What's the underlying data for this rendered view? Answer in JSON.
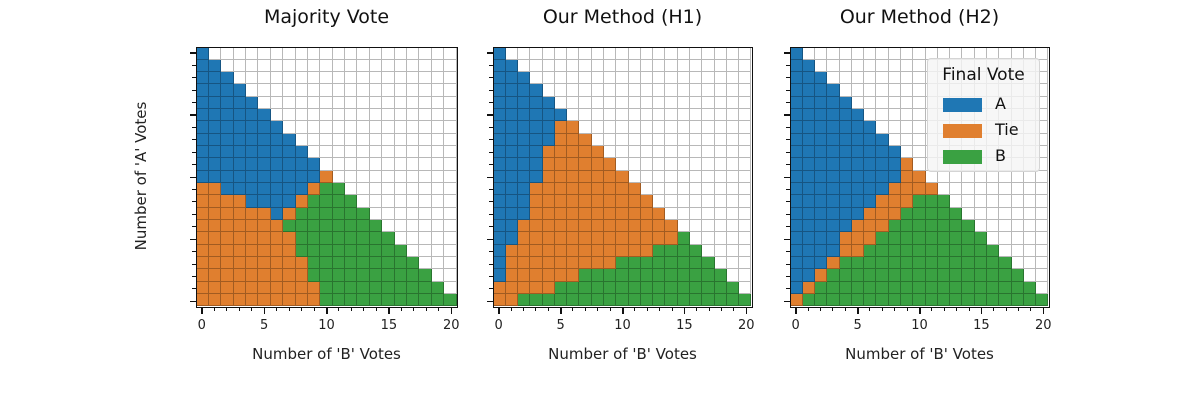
{
  "chart_data": {
    "type": "heatmap",
    "description": "Three triangular categorical grids: final vote outcome for each (B votes, A votes) pair with A+B <= 20",
    "legend": {
      "title": "Final Vote",
      "position": "upper right of third panel",
      "entries": [
        {
          "key": "A",
          "label": "A",
          "color": "#1f77b4"
        },
        {
          "key": "T",
          "label": "Tie",
          "color": "#e07f2f"
        },
        {
          "key": "B",
          "label": "B",
          "color": "#3aa142"
        }
      ]
    },
    "xlabel": "Number of 'B' Votes",
    "ylabel": "Number of 'A' Votes",
    "xlim": [
      0,
      20
    ],
    "ylim": [
      0,
      20
    ],
    "major_ticks": [
      0,
      5,
      10,
      15,
      20
    ],
    "minor_ticks_step": 1,
    "grid": true,
    "row_encoding": "rows listed from A=20 (top) down to A=0 (bottom); each string gives outcome for B=0..(20-A); A=A wins, T=Tie, B=B wins",
    "panels": [
      {
        "title": "Majority Vote",
        "rows": [
          "A",
          "AA",
          "AAA",
          "AAAA",
          "AAAAA",
          "AAAAAA",
          "AAAAAAA",
          "AAAAAAAA",
          "AAAAAAAAA",
          "AAAAAAAAAA",
          "AAAAAAAAAAT",
          "TTAAAAAAATBB",
          "TTTTAAAATBBBB",
          "TTTTTTATBBBBBB",
          "TTTTTTTBBBBBBBB",
          "TTTTTTTTBBBBBBBB",
          "TTTTTTTTBBBBBBBBB",
          "TTTTTTTTTBBBBBBBBB",
          "TTTTTTTTTBBBBBBBBBB",
          "TTTTTTTTTTBBBBBBBBBB",
          "TTTTTTTTTTBBBBBBBBBBB"
        ]
      },
      {
        "title": "Our Method (H1)",
        "rows": [
          "A",
          "AA",
          "AAA",
          "AAAA",
          "AAAAA",
          "AAAAAA",
          "AAAAATT",
          "AAAAATTT",
          "AAAATTTTT",
          "AAAATTTTTT",
          "AAAATTTTTTT",
          "AAATTTTTTTTT",
          "AAATTTTTTTTTT",
          "AAATTTTTTTTTTT",
          "AATTTTTTTTTTTTT",
          "AATTTTTTTTTTTTTB",
          "ATTTTTTTTTTTTBBBB",
          "ATTTTTTTTTBBBBBBBB",
          "ATTTTTTBBBBBBBBBBBB",
          "TTTTTBBBBBBBBBBBBBBB",
          "TTBBBBBBBBBBBBBBBBBBB"
        ]
      },
      {
        "title": "Our Method (H2)",
        "rows": [
          "A",
          "AA",
          "AAA",
          "AAAA",
          "AAAAA",
          "AAAAAA",
          "AAAAAAA",
          "AAAAAAAA",
          "AAAAAAAAA",
          "AAAAAAAAAT",
          "AAAAAAAAATT",
          "AAAAAAAATTTT",
          "AAAAAAATTTBBB",
          "AAAAAATTTBBBBB",
          "AAAAATTTBBBBBBB",
          "AAAATTTBBBBBBBBB",
          "AAAATTBBBBBBBBBBB",
          "AAATBBBBBBBBBBBBBB",
          "AATBBBBBBBBBBBBBBBB",
          "ATBBBBBBBBBBBBBBBBBB",
          "TBBBBBBBBBBBBBBBBBBBB"
        ]
      }
    ]
  },
  "labels": {
    "panel_titles": [
      "Majority Vote",
      "Our Method (H1)",
      "Our Method (H2)"
    ],
    "xlabel": "Number of 'B' Votes",
    "ylabel": "Number of 'A' Votes",
    "tick_labels": [
      "0",
      "5",
      "10",
      "15",
      "20"
    ],
    "legend_title": "Final Vote",
    "legend_labels": [
      "A",
      "Tie",
      "B"
    ]
  }
}
